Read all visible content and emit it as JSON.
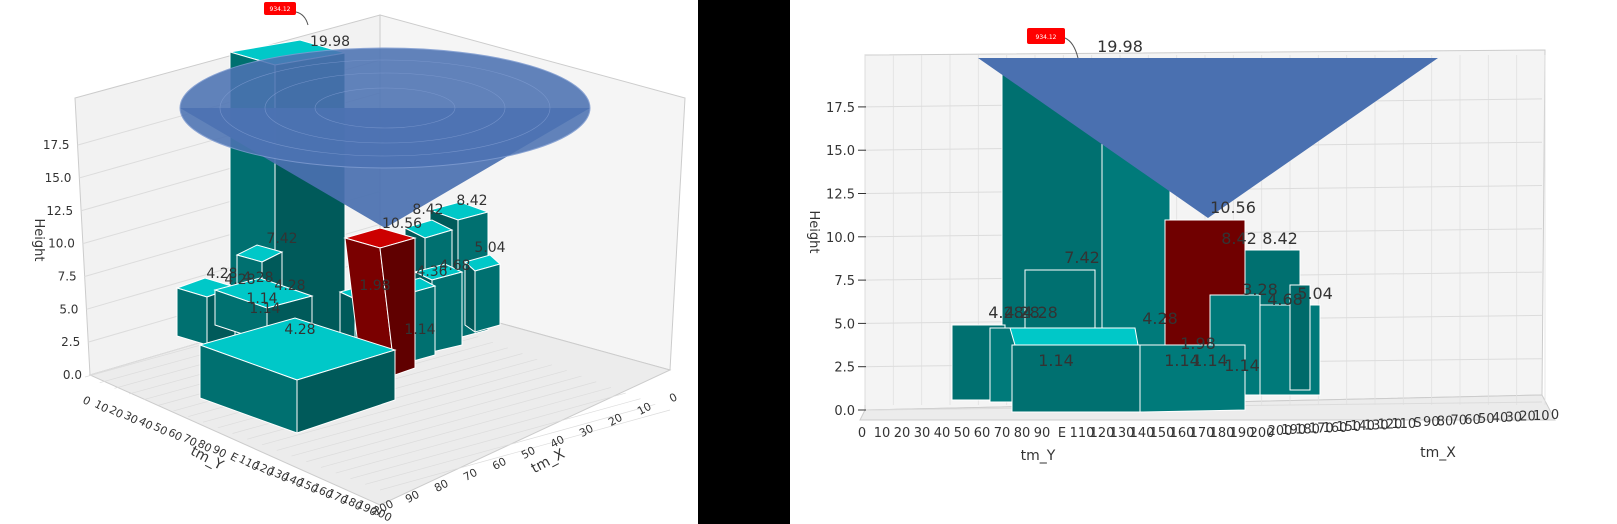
{
  "colors": {
    "bar_top": "#00c8c8",
    "bar_side": "#007070",
    "bar_side_dark": "#005a5a",
    "highlight": "#700000",
    "highlight_top": "#cc0000",
    "cone": "#4a70b0",
    "marker": "#ff0000",
    "grid": "#dddddd",
    "pane": "#f2f2f2"
  },
  "marker": {
    "label": "934.12",
    "color": "#ff0000"
  },
  "chart_data": [
    {
      "type": "bar3d",
      "view": "oblique",
      "xlabel": "tm_X",
      "ylabel": "tm_Y",
      "zlabel": "Height",
      "zticks": [
        "0.0",
        "2.5",
        "5.0",
        "7.5",
        "10.0",
        "12.5",
        "15.0",
        "17.5"
      ],
      "xticks": [
        "0",
        "10",
        "20",
        "30",
        "40",
        "50",
        "60",
        "70",
        "80",
        "90",
        "E",
        "110",
        "120",
        "130",
        "140",
        "150",
        "160",
        "170",
        "180",
        "190",
        "200"
      ],
      "yticks": [
        "100",
        "90",
        "80",
        "70",
        "60",
        "50",
        "40",
        "30",
        "20",
        "10",
        "0"
      ],
      "value_labels": [
        "19.98",
        "10.56",
        "8.42",
        "8.42",
        "7.42",
        "5.04",
        "4.28",
        "4.28",
        "4.28",
        "4.28",
        "4.28",
        "4.68",
        "4.36",
        "1.98",
        "1.14",
        "1.14",
        "1.14"
      ],
      "highlight_value": "10.56"
    },
    {
      "type": "bar3d",
      "view": "front",
      "xlabel": "tm_X",
      "ylabel": "tm_Y",
      "zlabel": "Height",
      "zticks": [
        "0.0",
        "2.5",
        "5.0",
        "7.5",
        "10.0",
        "12.5",
        "15.0",
        "17.5"
      ],
      "xticks": [
        "0",
        "10",
        "20",
        "30",
        "40",
        "50",
        "60",
        "70",
        "80",
        "90",
        "E",
        "110",
        "120",
        "130",
        "140",
        "150",
        "160",
        "170",
        "180",
        "190",
        "200"
      ],
      "yticks": [
        "200",
        "190",
        "180",
        "170",
        "160",
        "150",
        "140",
        "130",
        "120",
        "110",
        "S",
        "90",
        "80",
        "70",
        "60",
        "50",
        "40",
        "30",
        "20",
        "10",
        "0"
      ],
      "value_labels": [
        "19.98",
        "10.56",
        "8.42",
        "8.42",
        "7.42",
        "5.04",
        "4.28",
        "4.28",
        "4.28",
        "4.28",
        "4.68",
        "3.28",
        "1.98",
        "1.14",
        "1.14",
        "1.14",
        "1.14"
      ],
      "highlight_value": "10.56"
    }
  ]
}
